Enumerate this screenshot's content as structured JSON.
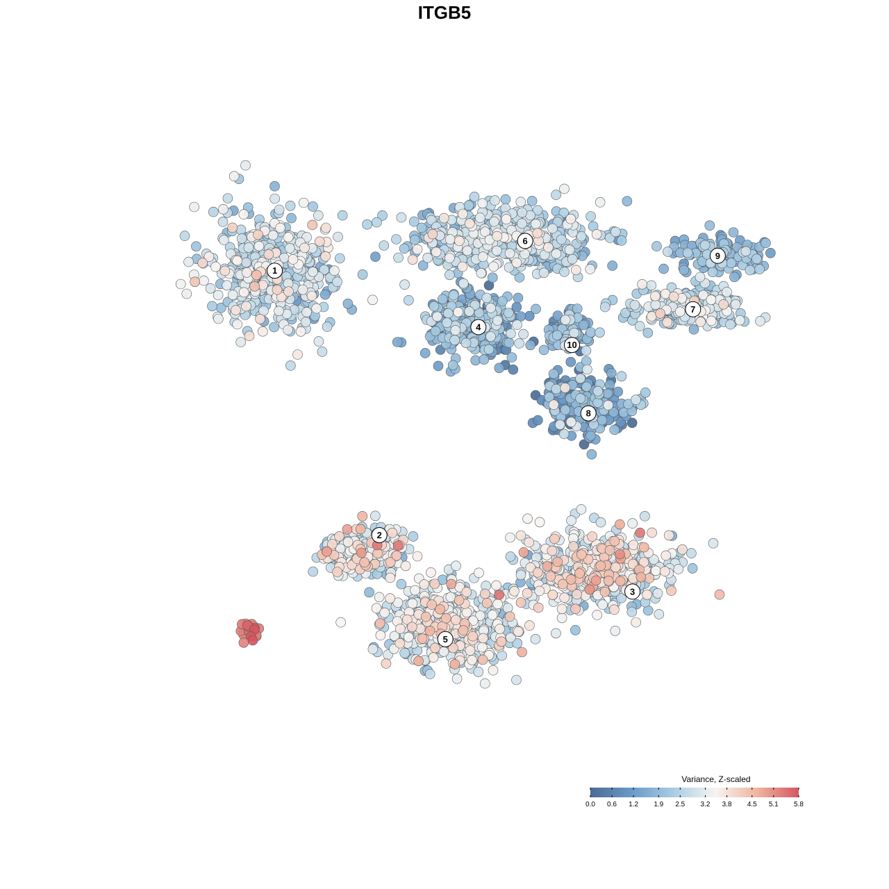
{
  "chart_data": {
    "type": "scatter",
    "title": "ITGB5",
    "xlabel": "",
    "ylabel": "",
    "grid": false,
    "axes_visible": false,
    "color_scale": {
      "title": "Variance, Z-scaled",
      "min": 0.0,
      "max": 5.8,
      "ticks": [
        "0.0",
        "0.6",
        "1.2",
        "1.9",
        "2.5",
        "3.2",
        "3.8",
        "4.5",
        "5.1",
        "5.8"
      ],
      "colors": [
        "#4a6b95",
        "#6b9ac8",
        "#a9cde3",
        "#f6f4f2",
        "#f0b4a0",
        "#d5575f"
      ],
      "legend_placement": "bottom-right"
    },
    "cluster_labels": [
      {
        "label": "1",
        "x": -6.8,
        "y": 6.1
      },
      {
        "label": "2",
        "x": -3.0,
        "y": -2.8
      },
      {
        "label": "3",
        "x": 6.2,
        "y": -4.7
      },
      {
        "label": "4",
        "x": 0.6,
        "y": 4.2
      },
      {
        "label": "5",
        "x": -0.6,
        "y": -6.3
      },
      {
        "label": "6",
        "x": 2.3,
        "y": 7.1
      },
      {
        "label": "7",
        "x": 8.4,
        "y": 4.8
      },
      {
        "label": "8",
        "x": 4.6,
        "y": 1.3
      },
      {
        "label": "9",
        "x": 9.3,
        "y": 6.6
      },
      {
        "label": "10",
        "x": 4.0,
        "y": 3.6
      }
    ],
    "clusters": [
      {
        "id": "1",
        "cx": -6.8,
        "cy": 6.1,
        "sx": 2.2,
        "sy": 2.0,
        "n": 450,
        "mean": 2.7,
        "sd": 0.65
      },
      {
        "id": "2",
        "cx": -3.5,
        "cy": -3.3,
        "sx": 1.4,
        "sy": 0.8,
        "n": 200,
        "mean": 3.1,
        "sd": 0.8
      },
      {
        "id": "3",
        "cx": 4.8,
        "cy": -4.0,
        "sx": 2.5,
        "sy": 1.2,
        "n": 500,
        "mean": 3.2,
        "sd": 0.7
      },
      {
        "id": "4",
        "cx": 0.3,
        "cy": 4.3,
        "sx": 1.5,
        "sy": 1.1,
        "n": 320,
        "mean": 1.6,
        "sd": 0.8
      },
      {
        "id": "5",
        "cx": -0.4,
        "cy": -5.8,
        "sx": 2.2,
        "sy": 1.3,
        "n": 500,
        "mean": 3.0,
        "sd": 0.65
      },
      {
        "id": "6",
        "cx": 1.5,
        "cy": 7.2,
        "sx": 3.2,
        "sy": 1.0,
        "n": 450,
        "mean": 2.5,
        "sd": 0.6
      },
      {
        "id": "7",
        "cx": 8.2,
        "cy": 4.9,
        "sx": 2.0,
        "sy": 0.6,
        "n": 200,
        "mean": 2.8,
        "sd": 0.5
      },
      {
        "id": "8",
        "cx": 4.4,
        "cy": 1.6,
        "sx": 1.5,
        "sy": 0.9,
        "n": 220,
        "mean": 1.3,
        "sd": 0.9
      },
      {
        "id": "9",
        "cx": 9.3,
        "cy": 6.6,
        "sx": 1.5,
        "sy": 0.6,
        "n": 130,
        "mean": 1.9,
        "sd": 0.5
      },
      {
        "id": "10",
        "cx": 4.0,
        "cy": 4.0,
        "sx": 0.8,
        "sy": 0.6,
        "n": 100,
        "mean": 1.6,
        "sd": 0.7
      },
      {
        "id": "hotspot",
        "cx": -7.8,
        "cy": -6.0,
        "sx": 0.4,
        "sy": 0.3,
        "n": 22,
        "mean": 5.3,
        "sd": 0.4
      }
    ],
    "xlim": [
      -13.0,
      13.0
    ],
    "ylim": [
      -10.5,
      11.0
    ]
  }
}
